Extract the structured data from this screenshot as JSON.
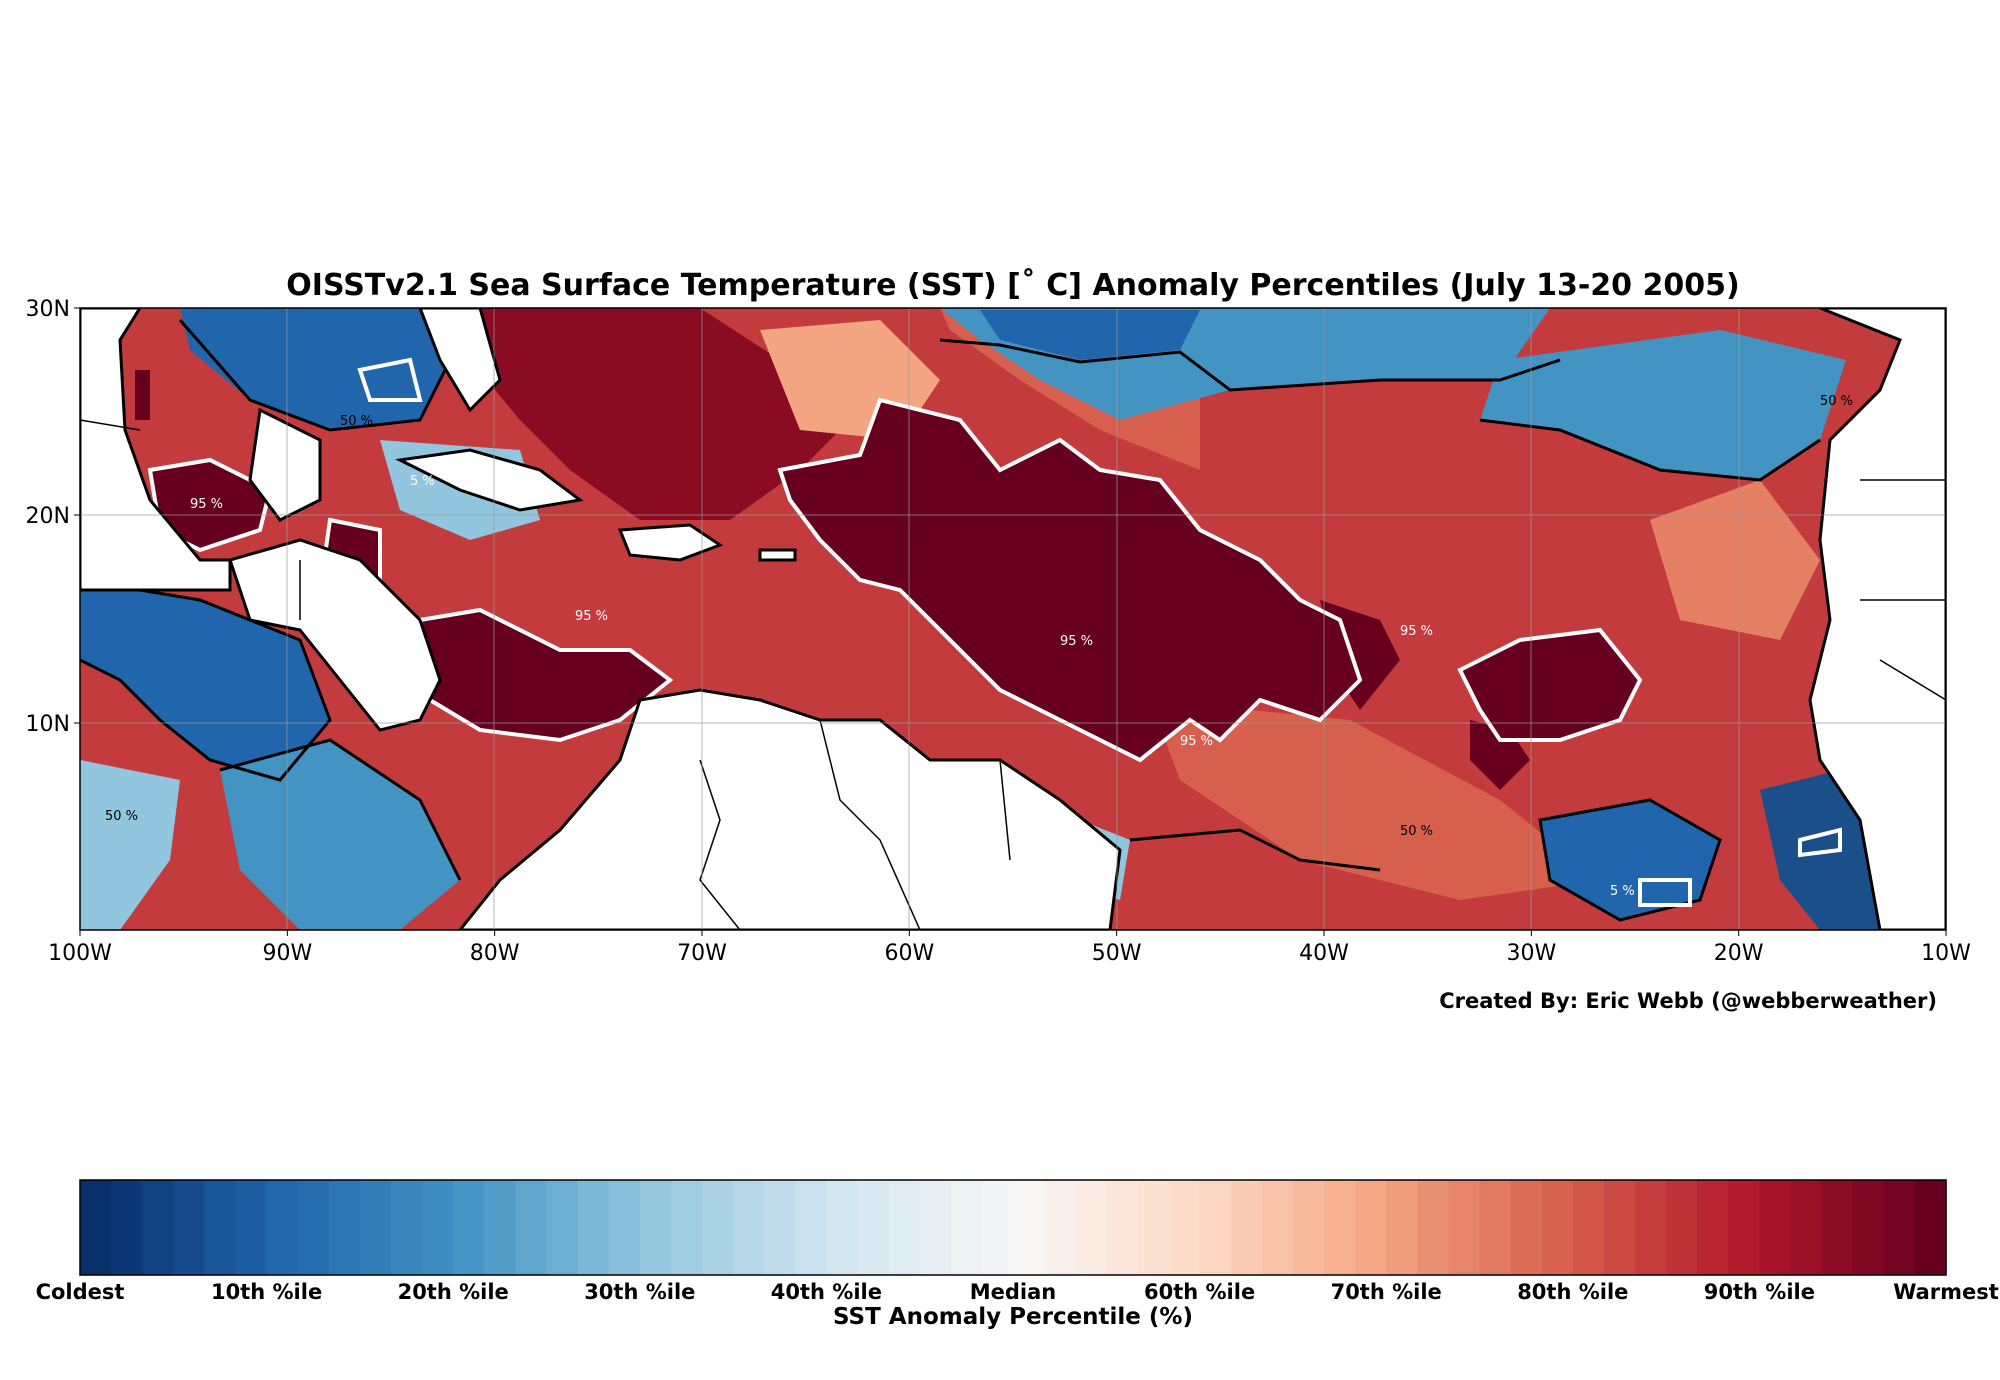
{
  "title": "OISSTv2.1 Sea Surface Temperature (SST) [˚ C] Anomaly Percentiles (July 13-20 2005)",
  "credit": "Created By: Eric Webb (@webberweather)",
  "map": {
    "lat_labels": [
      "30N",
      "20N",
      "10N"
    ],
    "lon_labels": [
      "100W",
      "90W",
      "80W",
      "70W",
      "60W",
      "50W",
      "40W",
      "30W",
      "20W",
      "10W"
    ],
    "contour_labels": [
      "95 %",
      "50 %",
      "5 %"
    ]
  },
  "colorbar": {
    "title": "SST Anomaly Percentile (%)",
    "ticks": [
      "Coldest",
      "10th %ile",
      "20th %ile",
      "30th %ile",
      "40th %ile",
      "Median",
      "60th %ile",
      "70th %ile",
      "80th %ile",
      "90th %ile",
      "Warmest"
    ],
    "colors": [
      "#08306b",
      "#2166ac",
      "#4393c3",
      "#92c5de",
      "#d1e5f0",
      "#f7f7f7",
      "#fddbc7",
      "#f4a582",
      "#d6604d",
      "#b2182b",
      "#67001f"
    ]
  }
}
